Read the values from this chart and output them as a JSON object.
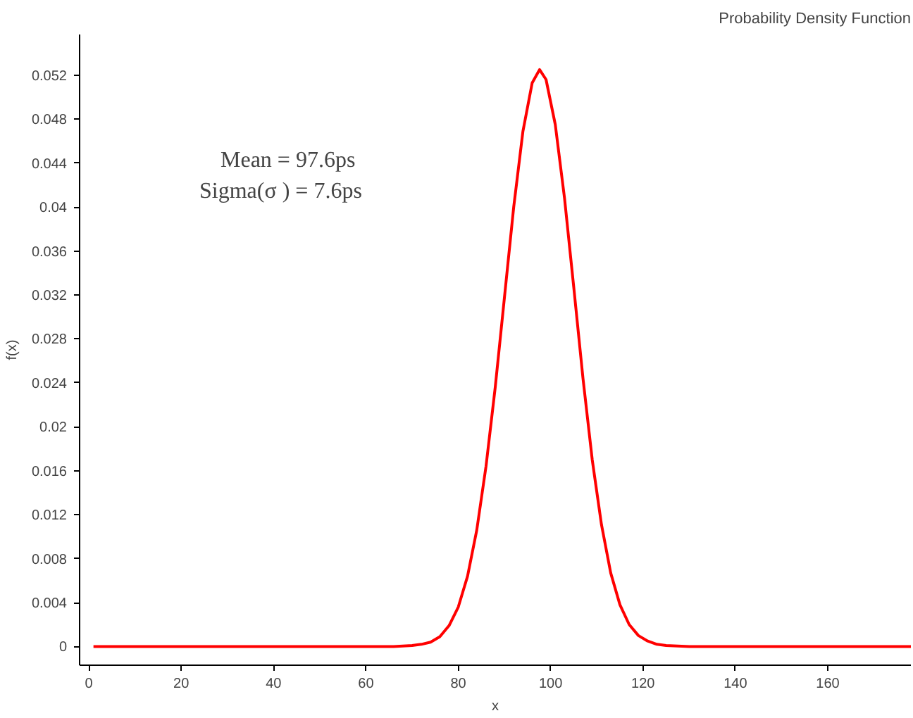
{
  "chart_data": {
    "type": "line",
    "title": "Probability Density Function",
    "xlabel": "x",
    "ylabel": "f(x)",
    "annotations": [
      "Mean      = 97.6ps",
      "Sigma(σ ) = 7.6ps"
    ],
    "xlim": [
      -2,
      178
    ],
    "ylim": [
      -0.0017,
      0.0557
    ],
    "xticks": [
      0,
      20,
      40,
      60,
      80,
      100,
      120,
      140,
      160
    ],
    "yticks": [
      0,
      0.004,
      0.008,
      0.012,
      0.016,
      0.02,
      0.024,
      0.028,
      0.032,
      0.036,
      0.04,
      0.044,
      0.048,
      0.052
    ],
    "grid": false,
    "marker": "none",
    "line_style": "solid",
    "series": [
      {
        "color": "#ff0000",
        "x": [
          1,
          60,
          66,
          70,
          72,
          74,
          76,
          78,
          80,
          82,
          84,
          86,
          88,
          90,
          92,
          94,
          96,
          97.6,
          99,
          101,
          103,
          105,
          107,
          109,
          111,
          113,
          115,
          117,
          119,
          121,
          123,
          125,
          130,
          178
        ],
        "values": [
          0,
          0,
          0,
          0.0001,
          0.0002,
          0.0004,
          0.0009,
          0.0019,
          0.0036,
          0.0064,
          0.0106,
          0.0164,
          0.0236,
          0.0318,
          0.04,
          0.0469,
          0.0513,
          0.0525,
          0.0516,
          0.0475,
          0.0408,
          0.0327,
          0.0244,
          0.017,
          0.0111,
          0.0067,
          0.0038,
          0.002,
          0.001,
          0.0005,
          0.0002,
          0.0001,
          0,
          0
        ]
      }
    ]
  }
}
